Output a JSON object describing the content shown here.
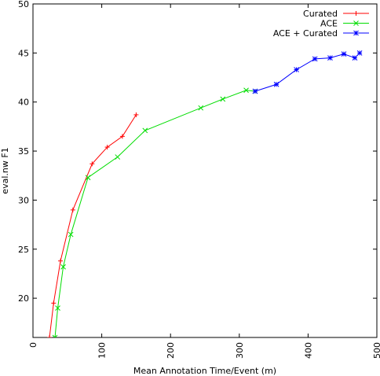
{
  "chart_data": {
    "type": "line",
    "title": "",
    "xlabel": "Mean Annotation Time/Event (m)",
    "ylabel": "eval.nw F1",
    "xlim": [
      0,
      500
    ],
    "ylim": [
      16,
      50
    ],
    "xticks": [
      0,
      100,
      200,
      300,
      400,
      500
    ],
    "yticks": [
      20,
      25,
      30,
      35,
      40,
      45,
      50
    ],
    "grid": false,
    "legend": "top-right",
    "series": [
      {
        "name": "Curated",
        "color": "#ff0000",
        "marker": "plus",
        "x": [
          24,
          30,
          40,
          58,
          86,
          108,
          130,
          150
        ],
        "y": [
          16,
          19.5,
          23.8,
          29,
          33.7,
          35.4,
          36.5,
          38.7
        ]
      },
      {
        "name": "ACE",
        "color": "#00dd00",
        "marker": "cross",
        "x": [
          32,
          36,
          44,
          55,
          80,
          123,
          163,
          244,
          276,
          310,
          323
        ],
        "y": [
          16,
          19,
          23.2,
          26.5,
          32.3,
          34.4,
          37.1,
          39.4,
          40.3,
          41.2,
          41.1
        ]
      },
      {
        "name": "ACE + Curated",
        "color": "#0000ff",
        "marker": "star",
        "x": [
          323,
          354,
          383,
          410,
          432,
          452,
          468,
          475
        ],
        "y": [
          41.1,
          41.8,
          43.3,
          44.4,
          44.5,
          44.9,
          44.5,
          45
        ]
      }
    ]
  }
}
